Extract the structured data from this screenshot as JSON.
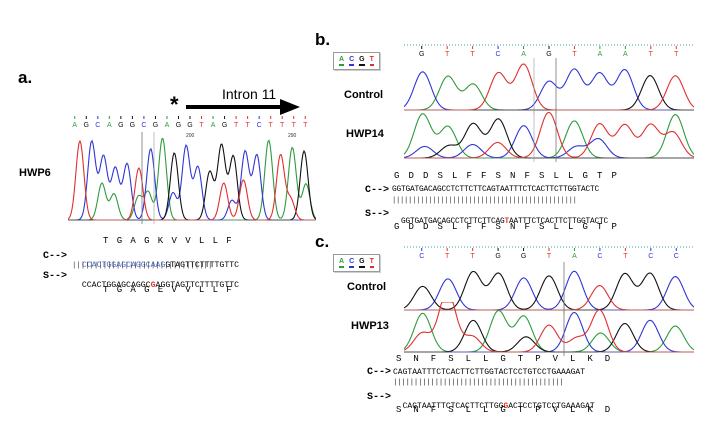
{
  "colors": {
    "A": "#2e9b3e",
    "C": "#2f36d6",
    "G": "#111111",
    "T": "#e0302e",
    "mut": "#e53a2a",
    "intron": "#4f6fcf"
  },
  "legend": [
    "A",
    "C",
    "G",
    "T"
  ],
  "panel_a": {
    "label": "a.",
    "sample": "HWP6",
    "star": "*",
    "arrow_label": "Intron 11",
    "base_calls": "AGCAGGCGAGGTAGTTCTTTT",
    "tick_200": "200",
    "tick_290": "290",
    "aa_top": "TGAGKVVLLF",
    "c_label": "C-->",
    "c_seq_exon": "CCACTGGAGCAGGCAAG",
    "c_seq_intron": "GTAGTTCTTTTGTTC",
    "bars": "||||||||||||||||||||||||||||||||",
    "s_label": "S-->",
    "s_seq_pre": "CCACTGGAGCAGGC",
    "s_seq_mut": "G",
    "s_seq_post": "AGGTAGTTCTTTTGTTC",
    "aa_bottom": "TGAGEVVLLF"
  },
  "panel_b": {
    "label": "b.",
    "control": "Control",
    "sample": "HWP14",
    "base_calls": "GTTCAGTAATT",
    "aa_top": "GDDSLFFSNFSLLGTP",
    "c_label": "C-->",
    "c_seq": "GGTGATGACAGCCTCTTCTTCAGTAATTTCTCACTTCTTGGTACTC",
    "bars": "||||||||||||||||||||||||||||||||||||||||||||||",
    "s_label": "S-->",
    "s_seq_pre": "GGTGATGACAGCCTCTTCTTCAG",
    "s_seq_mut": "T",
    "s_seq_post": "AATTTCTCACTTCTTGGTACTC",
    "aa_bottom": "GDDSLFFSNFSLLGTP"
  },
  "panel_c": {
    "label": "c.",
    "control": "Control",
    "sample": "HWP13",
    "base_calls": "CTTGGTACTCC",
    "aa_top": "SNFSLLGTPVLKD",
    "c_label": "C-->",
    "c_seq": "CAGTAATTTCTCACTTCTTGGTACTCCTGTCCTGAAAGAT",
    "bars": "|||||||||||||||||||||||||||||||||||||||||",
    "s_label": "S-->",
    "s_seq_pre": "CAGTAATTTCTCACTTCTTGG",
    "s_seq_mut": "G",
    "s_seq_post": "ACTCCTGTCCTGAAAGAT",
    "aa_bottom": "SNFSLLGTPVLKD"
  }
}
